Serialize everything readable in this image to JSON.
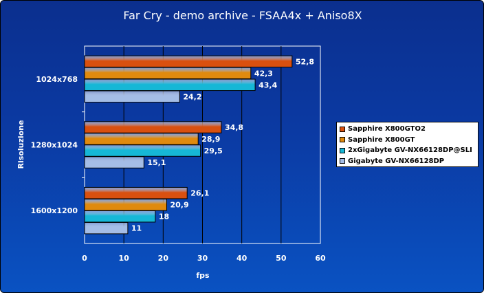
{
  "chart_data": {
    "type": "bar",
    "orientation": "horizontal",
    "title": "Far Cry - demo archive - FSAA4x + Aniso8X",
    "xlabel": "fps",
    "ylabel": "Risoluzione",
    "xlim": [
      0,
      60
    ],
    "xticks": [
      "0",
      "10",
      "20",
      "30",
      "40",
      "50",
      "60"
    ],
    "grid": true,
    "legend_position": "right",
    "categories": [
      "1024x768",
      "1280x1024",
      "1600x1200"
    ],
    "series": [
      {
        "name": "Sapphire X800GTO2",
        "color": "#d9500f",
        "values": [
          52.8,
          34.8,
          26.1
        ],
        "labels": [
          "52,8",
          "34,8",
          "26,1"
        ]
      },
      {
        "name": "Sapphire X800GT",
        "color": "#e08a0e",
        "values": [
          42.3,
          28.9,
          20.9
        ],
        "labels": [
          "42,3",
          "28,9",
          "20,9"
        ]
      },
      {
        "name": "2xGigabyte GV-NX66128DP@SLI",
        "color": "#16b7d6",
        "values": [
          43.4,
          29.5,
          18
        ],
        "labels": [
          "43,4",
          "29,5",
          "18"
        ]
      },
      {
        "name": "Gigabyte GV-NX66128DP",
        "color": "#a4bde6",
        "values": [
          24.2,
          15.1,
          11
        ],
        "labels": [
          "24,2",
          "15,1",
          "11"
        ]
      }
    ]
  }
}
